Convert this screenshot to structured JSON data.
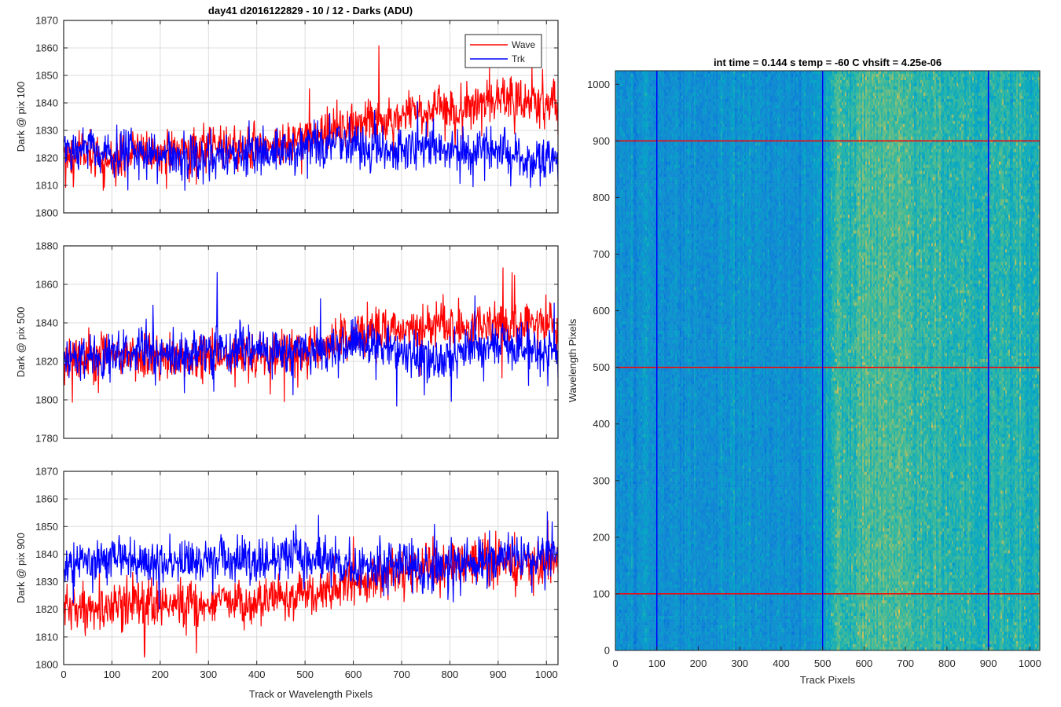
{
  "figure": {
    "title": "day41 d2016122829 - 10 / 12 - Darks (ADU)",
    "image_title": "int time = 0.144 s   temp = -60 C   vhsift = 4.25e-06"
  },
  "colors": {
    "wave": "#ff0000",
    "trk": "#0000ff",
    "grid": "#dcdcdc",
    "axis": "#262626"
  },
  "legend": {
    "entries": [
      "Wave",
      "Trk"
    ],
    "placement": "top-right"
  },
  "chart_data": [
    {
      "type": "line",
      "ylabel": "Dark @ pix 100",
      "xlabel": "",
      "xlim": [
        0,
        1024
      ],
      "ylim": [
        1800,
        1870
      ],
      "x_ticks": [
        "0",
        "100",
        "200",
        "300",
        "400",
        "500",
        "600",
        "700",
        "800",
        "900",
        "1000"
      ],
      "y_ticks": [
        "1800",
        "1810",
        "1820",
        "1830",
        "1840",
        "1850",
        "1860",
        "1870"
      ],
      "grid": true,
      "series": [
        {
          "name": "Wave",
          "color": "#ff0000",
          "values": [
            1820,
            1822,
            1818,
            1823,
            1820,
            1822,
            1825,
            1823,
            1824,
            1826,
            1827,
            1830,
            1832,
            1834,
            1836,
            1838,
            1837,
            1839,
            1840,
            1841,
            1840
          ]
        },
        {
          "name": "Trk",
          "color": "#0000ff",
          "values": [
            1822,
            1823,
            1821,
            1822,
            1820,
            1819,
            1821,
            1820,
            1822,
            1823,
            1824,
            1825,
            1824,
            1823,
            1822,
            1824,
            1822,
            1823,
            1821,
            1819,
            1818
          ]
        }
      ]
    },
    {
      "type": "line",
      "ylabel": "Dark @ pix 500",
      "xlabel": "",
      "xlim": [
        0,
        1024
      ],
      "ylim": [
        1780,
        1880
      ],
      "x_ticks": [
        "0",
        "100",
        "200",
        "300",
        "400",
        "500",
        "600",
        "700",
        "800",
        "900",
        "1000"
      ],
      "y_ticks": [
        "1780",
        "1800",
        "1820",
        "1840",
        "1860",
        "1880"
      ],
      "grid": true,
      "series": [
        {
          "name": "Wave",
          "color": "#ff0000",
          "values": [
            1822,
            1823,
            1824,
            1823,
            1822,
            1821,
            1823,
            1822,
            1823,
            1824,
            1826,
            1830,
            1833,
            1836,
            1838,
            1839,
            1838,
            1839,
            1840,
            1839,
            1840
          ]
        },
        {
          "name": "Trk",
          "color": "#0000ff",
          "values": [
            1821,
            1822,
            1823,
            1825,
            1824,
            1823,
            1825,
            1826,
            1825,
            1824,
            1826,
            1828,
            1829,
            1826,
            1822,
            1818,
            1825,
            1828,
            1830,
            1826,
            1823
          ]
        }
      ]
    },
    {
      "type": "line",
      "ylabel": "Dark @ pix 900",
      "xlabel": "Track or Wavelength Pixels",
      "xlim": [
        0,
        1024
      ],
      "ylim": [
        1800,
        1870
      ],
      "x_ticks": [
        "0",
        "100",
        "200",
        "300",
        "400",
        "500",
        "600",
        "700",
        "800",
        "900",
        "1000"
      ],
      "y_ticks": [
        "1800",
        "1810",
        "1820",
        "1830",
        "1840",
        "1850",
        "1860",
        "1870"
      ],
      "grid": true,
      "series": [
        {
          "name": "Wave",
          "color": "#ff0000",
          "values": [
            1820,
            1819,
            1821,
            1822,
            1822,
            1821,
            1823,
            1822,
            1823,
            1824,
            1826,
            1828,
            1830,
            1832,
            1834,
            1835,
            1836,
            1837,
            1838,
            1837,
            1836
          ]
        },
        {
          "name": "Trk",
          "color": "#0000ff",
          "values": [
            1836,
            1837,
            1839,
            1838,
            1836,
            1837,
            1839,
            1838,
            1837,
            1839,
            1838,
            1837,
            1836,
            1835,
            1836,
            1835,
            1836,
            1837,
            1838,
            1838,
            1840
          ]
        }
      ]
    },
    {
      "type": "heatmap",
      "title": "int time = 0.144 s   temp = -60 C   vhsift = 4.25e-06",
      "xlabel": "Track Pixels",
      "ylabel": "Wavelength Pixels",
      "xlim": [
        0,
        1024
      ],
      "ylim": [
        0,
        1024
      ],
      "x_ticks": [
        "0",
        "100",
        "200",
        "300",
        "400",
        "500",
        "600",
        "700",
        "800",
        "900",
        "1000"
      ],
      "y_ticks": [
        "0",
        "100",
        "200",
        "300",
        "400",
        "500",
        "600",
        "700",
        "800",
        "900",
        "1000"
      ],
      "colormap": "parula",
      "column_brightness": [
        [
          0,
          0.42
        ],
        [
          480,
          0.42
        ],
        [
          520,
          0.55
        ],
        [
          640,
          0.62
        ],
        [
          760,
          0.58
        ],
        [
          900,
          0.55
        ],
        [
          1024,
          0.55
        ]
      ],
      "vertical_markers": [
        100,
        500,
        900
      ],
      "horizontal_markers": [
        100,
        500,
        900
      ],
      "vertical_marker_color": "#0000ff",
      "horizontal_marker_color": "#ff0000"
    }
  ]
}
